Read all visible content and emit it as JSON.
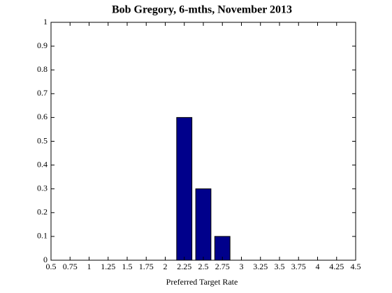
{
  "chart_data": {
    "type": "bar",
    "title": "Bob Gregory, 6-mths, November 2013",
    "xlabel": "Preferred Target Rate",
    "x": [
      2.25,
      2.5,
      2.75
    ],
    "values": [
      0.6,
      0.3,
      0.1
    ],
    "color": "#00008b",
    "xlim": [
      0.5,
      4.5
    ],
    "xticks": [
      0.5,
      0.75,
      1,
      1.25,
      1.5,
      1.75,
      2,
      2.25,
      2.5,
      2.75,
      3,
      3.25,
      3.5,
      3.75,
      4,
      4.25,
      4.5
    ],
    "ylim": [
      0,
      1
    ],
    "yticks": [
      0,
      0.1,
      0.2,
      0.3,
      0.4,
      0.5,
      0.6,
      0.7,
      0.8,
      0.9,
      1
    ]
  }
}
